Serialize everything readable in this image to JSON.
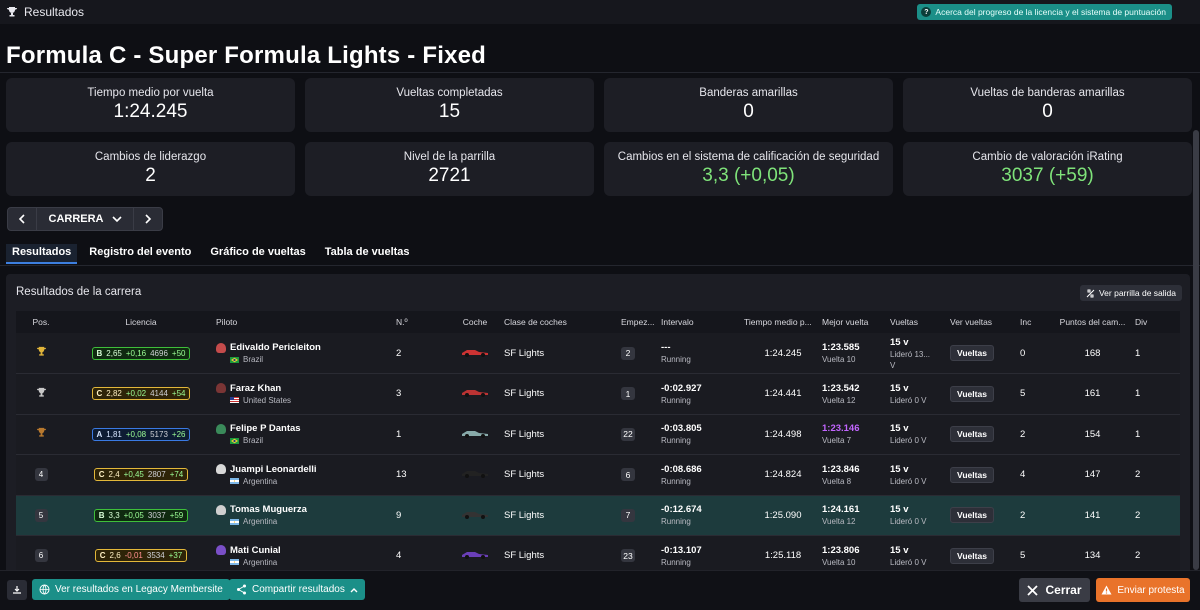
{
  "window": {
    "title": "Resultados",
    "about_label": "Acerca del progreso de la licencia y el sistema de puntuación"
  },
  "heading": "Formula C - Super Formula Lights - Fixed",
  "stats": [
    {
      "label": "Tiempo medio por vuelta",
      "value": "1:24.245"
    },
    {
      "label": "Vueltas completadas",
      "value": "15"
    },
    {
      "label": "Banderas amarillas",
      "value": "0"
    },
    {
      "label": "Vueltas de banderas amarillas",
      "value": "0"
    },
    {
      "label": "Cambios de liderazgo",
      "value": "2"
    },
    {
      "label": "Nivel de la parrilla",
      "value": "2721"
    },
    {
      "label": "Cambios en el sistema de calificación de seguridad",
      "value": "3,3 (+0,05)"
    },
    {
      "label": "Cambio de valoración iRating",
      "value": "3037 (+59)"
    }
  ],
  "session_nav": {
    "label": "CARRERA"
  },
  "tabs": [
    "Resultados",
    "Registro del evento",
    "Gráfico de vueltas",
    "Tabla de vueltas"
  ],
  "results": {
    "title": "Resultados de la carrera",
    "grid_button": "Ver parrilla de salida",
    "columns": [
      "Pos.",
      "Licencia",
      "Piloto",
      "N.º",
      "Coche",
      "Clase de coches",
      "Empez...",
      "Intervalo",
      "Tiempo medio p...",
      "Mejor vuelta",
      "Vueltas",
      "Ver vueltas",
      "Inc",
      "Puntos del cam...",
      "Div"
    ],
    "rows": [
      {
        "pos": "",
        "lic_class": "B",
        "sr": "2,65",
        "sr_delta": "+0,16",
        "ir": "4696",
        "ir_delta": "+50",
        "name": "Edivaldo Pericleiton",
        "country": "Brazil",
        "num": "2",
        "car_class": "SF Lights",
        "start": "2",
        "interval": "---",
        "status": "Running",
        "avg": "1:24.245",
        "best": "1:23.585",
        "best_lap": "Vuelta 10",
        "laps": "15 v",
        "led": "Lideró 13...",
        "led2": "V",
        "view": "Vueltas",
        "inc": "0",
        "points": "168",
        "div": "1"
      },
      {
        "pos": "",
        "lic_class": "C",
        "sr": "2,82",
        "sr_delta": "+0,02",
        "ir": "4144",
        "ir_delta": "+54",
        "name": "Faraz Khan",
        "country": "United States",
        "num": "3",
        "car_class": "SF Lights",
        "start": "1",
        "interval": "-0:02.927",
        "status": "Running",
        "avg": "1:24.441",
        "best": "1:23.542",
        "best_lap": "Vuelta 12",
        "laps": "15 v",
        "led": "Lideró 0 V",
        "led2": "",
        "view": "Vueltas",
        "inc": "5",
        "points": "161",
        "div": "1"
      },
      {
        "pos": "",
        "lic_class": "A",
        "sr": "1,81",
        "sr_delta": "+0,08",
        "ir": "5173",
        "ir_delta": "+26",
        "name": "Felipe P Dantas",
        "country": "Brazil",
        "num": "1",
        "car_class": "SF Lights",
        "start": "22",
        "interval": "-0:03.805",
        "status": "Running",
        "avg": "1:24.498",
        "best": "1:23.146",
        "best_lap": "Vuelta 7",
        "laps": "15 v",
        "led": "Lideró 0 V",
        "led2": "",
        "view": "Vueltas",
        "inc": "2",
        "points": "154",
        "div": "1"
      },
      {
        "pos": "4",
        "lic_class": "C",
        "sr": "2,4",
        "sr_delta": "+0,45",
        "ir": "2807",
        "ir_delta": "+74",
        "name": "Juampi Leonardelli",
        "country": "Argentina",
        "num": "13",
        "car_class": "SF Lights",
        "start": "6",
        "interval": "-0:08.686",
        "status": "Running",
        "avg": "1:24.824",
        "best": "1:23.846",
        "best_lap": "Vuelta 8",
        "laps": "15 v",
        "led": "Lideró 0 V",
        "led2": "",
        "view": "Vueltas",
        "inc": "4",
        "points": "147",
        "div": "2"
      },
      {
        "pos": "5",
        "lic_class": "B",
        "sr": "3,3",
        "sr_delta": "+0,05",
        "ir": "3037",
        "ir_delta": "+59",
        "name": "Tomas Muguerza",
        "country": "Argentina",
        "num": "9",
        "car_class": "SF Lights",
        "start": "7",
        "interval": "-0:12.674",
        "status": "Running",
        "avg": "1:25.090",
        "best": "1:24.161",
        "best_lap": "Vuelta 12",
        "laps": "15 v",
        "led": "Lideró 0 V",
        "led2": "",
        "view": "Vueltas",
        "inc": "2",
        "points": "141",
        "div": "2"
      },
      {
        "pos": "6",
        "lic_class": "C",
        "sr": "2,6",
        "sr_delta": "-0,01",
        "ir": "3534",
        "ir_delta": "+37",
        "name": "Mati Cunial",
        "country": "Argentina",
        "num": "4",
        "car_class": "SF Lights",
        "start": "23",
        "interval": "-0:13.107",
        "status": "Running",
        "avg": "1:25.118",
        "best": "1:23.806",
        "best_lap": "Vuelta 10",
        "laps": "15 v",
        "led": "Lideró 0 V",
        "led2": "",
        "view": "Vueltas",
        "inc": "5",
        "points": "134",
        "div": "2"
      }
    ]
  },
  "footer": {
    "legacy_button": "Ver resultados en Legacy Membersite",
    "share_button": "Compartir resultados",
    "close_button": "Cerrar",
    "protest_button": "Enviar protesta"
  },
  "colors": {
    "accent_teal": "#1b8f88",
    "protest_orange": "#e9732a",
    "positive_green": "#7fe37a",
    "fastest_purple": "#c266ff",
    "highlight_row": "#1d3b3d"
  }
}
